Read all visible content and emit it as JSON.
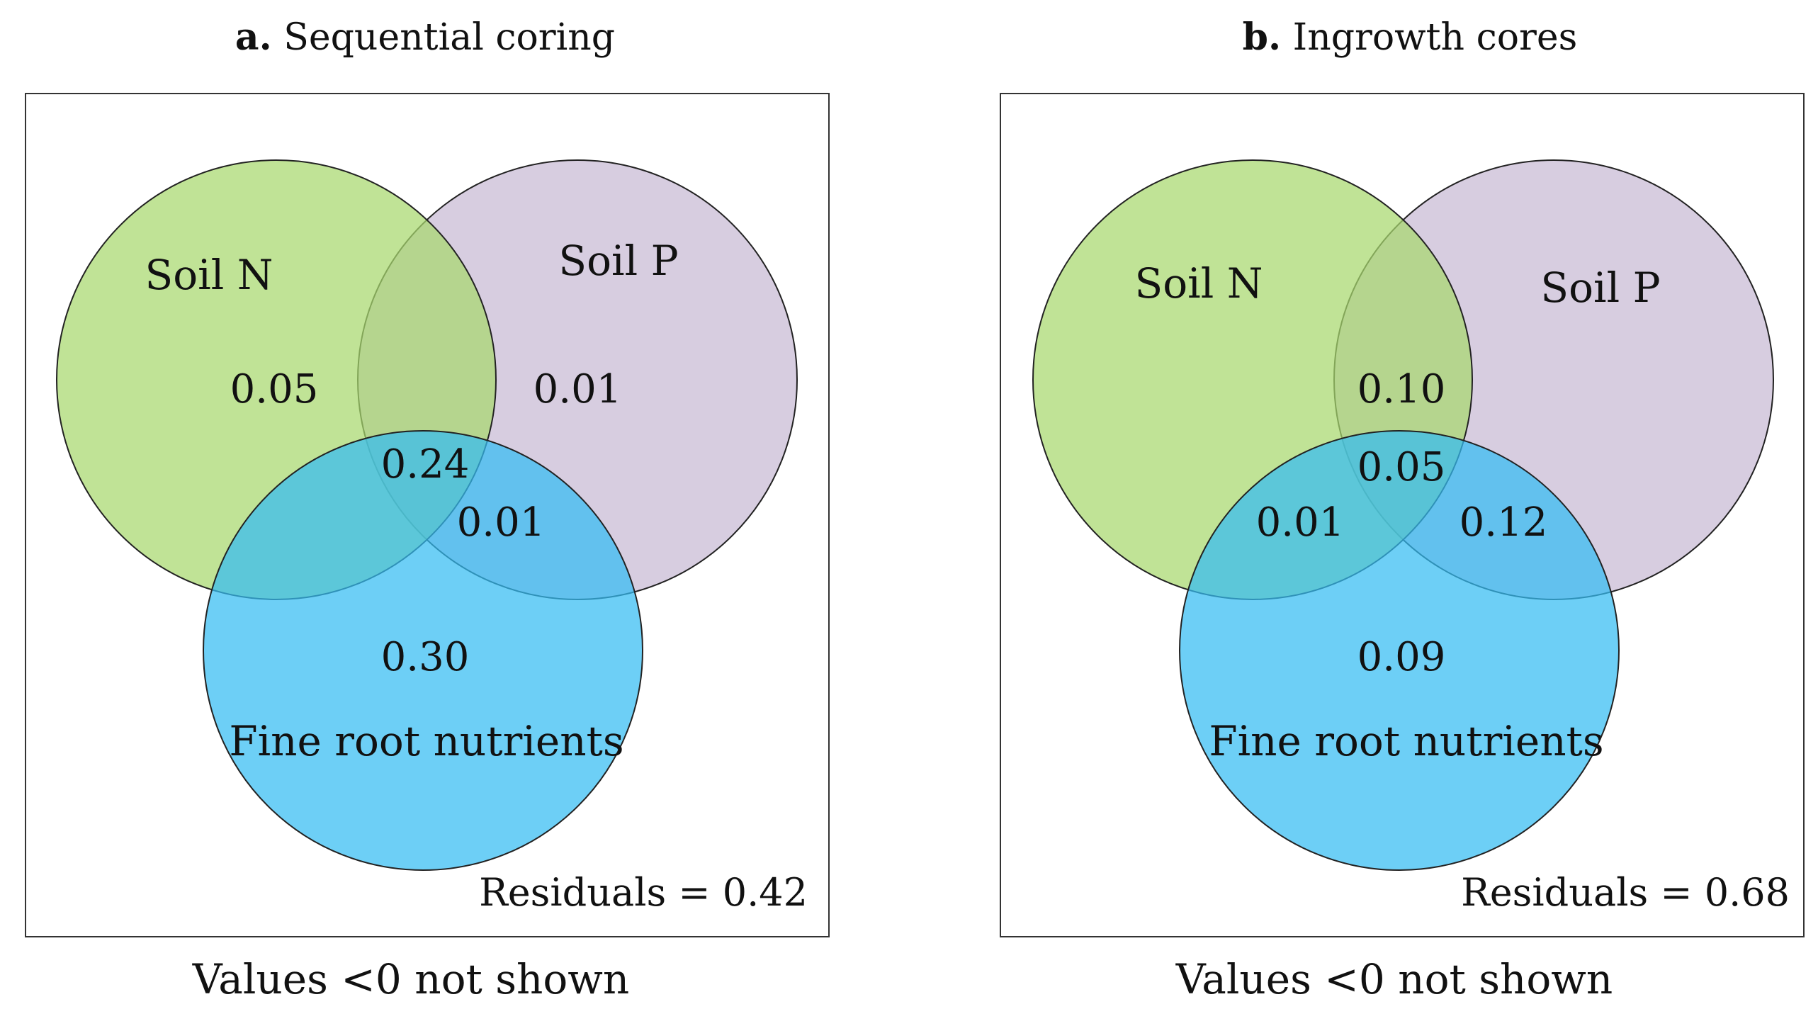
{
  "colors": {
    "soil_n": "#a8d86e",
    "soil_p": "#c9bcd6",
    "fine_root": "#35bdf2",
    "frame": "#333333"
  },
  "panels": [
    {
      "title_bold": "a.",
      "title_text": " Sequential coring",
      "labels": {
        "soil_n": "Soil N",
        "soil_p": "Soil P",
        "fine_root": "Fine root nutrients"
      },
      "values": {
        "n_only": "0.05",
        "p_only": "0.01",
        "n_p": "",
        "n_p_root": "0.24",
        "n_root": "",
        "p_root": "0.01",
        "root_only": "0.30"
      },
      "residuals": "Residuals = 0.42",
      "footnote": "Values <0 not shown"
    },
    {
      "title_bold": "b.",
      "title_text": " Ingrowth cores",
      "labels": {
        "soil_n": "Soil N",
        "soil_p": "Soil P",
        "fine_root": "Fine root nutrients"
      },
      "values": {
        "n_only": "",
        "p_only": "",
        "n_p": "0.10",
        "n_p_root": "0.05",
        "n_root": "0.01",
        "p_root": "0.12",
        "root_only": "0.09"
      },
      "residuals": "Residuals = 0.68",
      "footnote": "Values <0 not shown"
    }
  ]
}
